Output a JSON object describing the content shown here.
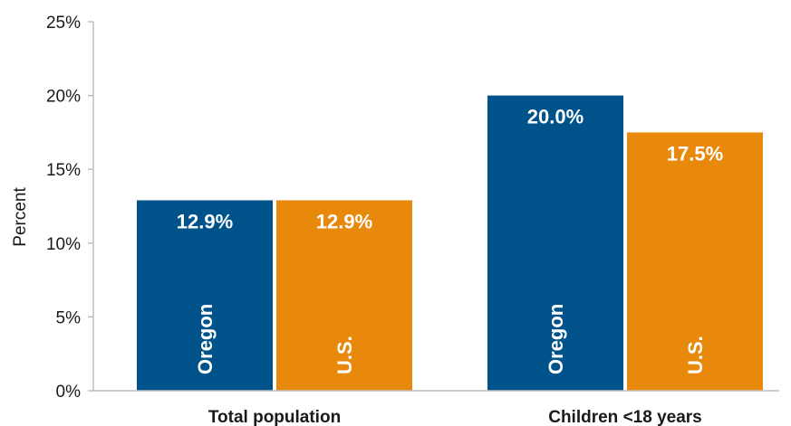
{
  "chart_data": {
    "type": "bar",
    "title": "",
    "xlabel": "",
    "ylabel": "Percent",
    "ylim": [
      0,
      25
    ],
    "yticks": [
      0,
      5,
      10,
      15,
      20,
      25
    ],
    "ytick_labels": [
      "0%",
      "5%",
      "10%",
      "15%",
      "20%",
      "25%"
    ],
    "grid": false,
    "categories": [
      "Total population",
      "Children <18 years"
    ],
    "series": [
      {
        "name": "Oregon",
        "values": [
          12.9,
          20.0
        ],
        "labels": [
          "12.9%",
          "20.0%"
        ],
        "color": "#00538a"
      },
      {
        "name": "U.S.",
        "values": [
          12.9,
          17.5
        ],
        "labels": [
          "12.9%",
          "17.5%"
        ],
        "color": "#e8890c"
      }
    ],
    "series_name_placement": "inside-bar-bottom-rotated",
    "legend": "none"
  }
}
